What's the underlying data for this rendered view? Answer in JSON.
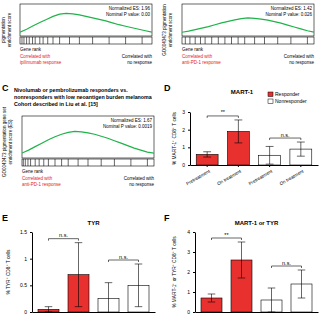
{
  "chart_data": [
    {
      "type": "line",
      "y_label": [
        "pigmentation",
        "enrichment score"
      ],
      "x_label": "Gene rank",
      "annotations": [
        "Normalized ES: 1.96",
        "Nominal P value: 0.00"
      ],
      "x_end_labels": [
        [
          "Correlated with",
          "ipilimumab response"
        ],
        [
          "Correlated with",
          "no response"
        ]
      ],
      "x": [
        0,
        1,
        2,
        3,
        4,
        5,
        6,
        7,
        8,
        9,
        10,
        11,
        12,
        13,
        14,
        15,
        16,
        17,
        18,
        19,
        20
      ],
      "series": [
        {
          "color": "#1fb34a",
          "values": [
            0,
            0.08,
            0.17,
            0.26,
            0.34,
            0.42,
            0.48,
            0.5,
            0.49,
            0.46,
            0.42,
            0.38,
            0.34,
            0.3,
            0.25,
            0.2,
            0.16,
            0.12,
            0.08,
            0.04,
            0
          ]
        }
      ],
      "hits": [
        0.3,
        0.6,
        1,
        1.4,
        1.9,
        2.3,
        3,
        3.5,
        4.2,
        5,
        6,
        7.5,
        9,
        11,
        13.5,
        16,
        18.5
      ],
      "xlim": [
        0,
        20
      ],
      "ylim": [
        -0.1,
        0.75
      ],
      "tick_labels": false
    },
    {
      "type": "line",
      "y_label": [
        "GO0043473 pigmentation",
        "enrichment score"
      ],
      "x_label": "Gene rank",
      "annotations": [
        "Normalized ES: 1.42",
        "Nominal P value: 0.026"
      ],
      "x_end_labels": [
        [
          "Correlated with",
          "anti-PD-1 response"
        ],
        [
          "Correlated with",
          "no response"
        ]
      ],
      "x": [
        0,
        1,
        2,
        3,
        4,
        5,
        6,
        7,
        8,
        9,
        10,
        11,
        12,
        13,
        14,
        15,
        16,
        17,
        18,
        19,
        20
      ],
      "series": [
        {
          "color": "#1fb34a",
          "values": [
            0,
            0.03,
            0.07,
            0.11,
            0.15,
            0.2,
            0.25,
            0.29,
            0.33,
            0.36,
            0.38,
            0.37,
            0.35,
            0.32,
            0.28,
            0.24,
            0.19,
            0.14,
            0.09,
            0.04,
            0
          ]
        }
      ],
      "hits": [
        0.5,
        1.2,
        2,
        2.8,
        3.5,
        4.5,
        5.5,
        6.5,
        7.5,
        8.5,
        9.5,
        11,
        12.5,
        14.5,
        16.5,
        19
      ],
      "xlim": [
        0,
        20
      ],
      "ylim": [
        -0.1,
        0.75
      ],
      "tick_labels": false
    },
    {
      "type": "line",
      "panel": "C",
      "title": [
        "Nivolumab or pembrolizumab responders vs.",
        "nonresponders with low neoantigen burden melanoma",
        "Cohort described in Liu et al. [15]"
      ],
      "y_label": [
        "GO0043473 pigmentation gene set",
        "enrichment score (ES)"
      ],
      "x_label": "Gene rank",
      "annotations": [
        "Normalized ES: 1.67",
        "Nominal P value: 0.0019"
      ],
      "x_end_labels": [
        [
          "Correlated with",
          "anti-PD-1 response"
        ],
        [
          "Correlated with",
          "no response"
        ]
      ],
      "x": [
        0,
        1,
        2,
        3,
        4,
        5,
        6,
        7,
        8,
        9,
        10,
        11,
        12,
        13,
        14,
        15,
        16,
        17,
        18,
        19,
        20
      ],
      "series": [
        {
          "color": "#1fb34a",
          "values": [
            0,
            0.06,
            0.13,
            0.2,
            0.27,
            0.33,
            0.38,
            0.42,
            0.44,
            0.43,
            0.41,
            0.38,
            0.34,
            0.3,
            0.25,
            0.2,
            0.15,
            0.1,
            0.06,
            0.02,
            0
          ]
        }
      ],
      "hits": [
        0.2,
        0.5,
        0.9,
        1.3,
        2,
        2.6,
        3.3,
        4,
        5,
        6,
        7,
        8.5,
        10,
        12,
        14,
        16.5,
        19
      ],
      "xlim": [
        0,
        20
      ],
      "ylim": [
        -0.1,
        0.75
      ],
      "tick_labels": false
    },
    {
      "type": "bar",
      "panel": "D",
      "title": "MART-1",
      "y_label": "% MART-1⁺ CD8⁺ T cells",
      "categories": [
        "Pretreatment",
        "On treatment",
        "Pretreatment",
        "On treatment"
      ],
      "series": [
        {
          "name": "Responder",
          "color": "#e8312f",
          "values": [
            0.6,
            1.9,
            null,
            null
          ],
          "errors": [
            0.15,
            0.65,
            null,
            null
          ]
        },
        {
          "name": "Nonresponder",
          "color": "#ffffff",
          "values": [
            null,
            null,
            0.55,
            0.9
          ],
          "errors": [
            null,
            null,
            0.5,
            0.4
          ]
        }
      ],
      "ylim": [
        0,
        3
      ],
      "yticks": [
        0,
        1,
        2,
        3
      ],
      "legend": "upper right",
      "annotations": [
        "**",
        "n.s."
      ]
    },
    {
      "type": "bar",
      "panel": "E",
      "title": "TYR",
      "y_label": "% TYR⁺ CD8⁺ T cells",
      "categories": [
        null,
        null,
        null,
        null
      ],
      "series": [
        {
          "name": "Responder",
          "color": "#e8312f",
          "values": [
            0.05,
            0.7,
            null,
            null
          ],
          "errors": [
            0.05,
            0.6,
            null,
            null
          ]
        },
        {
          "name": "Nonresponder",
          "color": "#ffffff",
          "values": [
            null,
            null,
            0.25,
            0.5
          ],
          "errors": [
            null,
            null,
            0.3,
            0.4
          ]
        }
      ],
      "ylim": [
        0,
        1.5
      ],
      "yticks": [
        0,
        0.5,
        1,
        1.5
      ],
      "annotations": [
        "n.s.",
        "n.s."
      ]
    },
    {
      "type": "bar",
      "panel": "F",
      "title": "MART-1 or TYR",
      "y_label": "% MART-1⁺ or TYR⁺ CD8⁺ T cells",
      "categories": [
        null,
        null,
        null,
        null
      ],
      "series": [
        {
          "name": "Responder",
          "color": "#e8312f",
          "values": [
            0.7,
            2.6,
            null,
            null
          ],
          "errors": [
            0.2,
            0.9,
            null,
            null
          ]
        },
        {
          "name": "Nonresponder",
          "color": "#ffffff",
          "values": [
            null,
            null,
            0.6,
            1.4
          ],
          "errors": [
            null,
            null,
            0.6,
            0.7
          ]
        }
      ],
      "ylim": [
        0,
        4
      ],
      "yticks": [
        0,
        1,
        2,
        3,
        4
      ],
      "annotations": [
        "**",
        "n.s."
      ]
    }
  ]
}
